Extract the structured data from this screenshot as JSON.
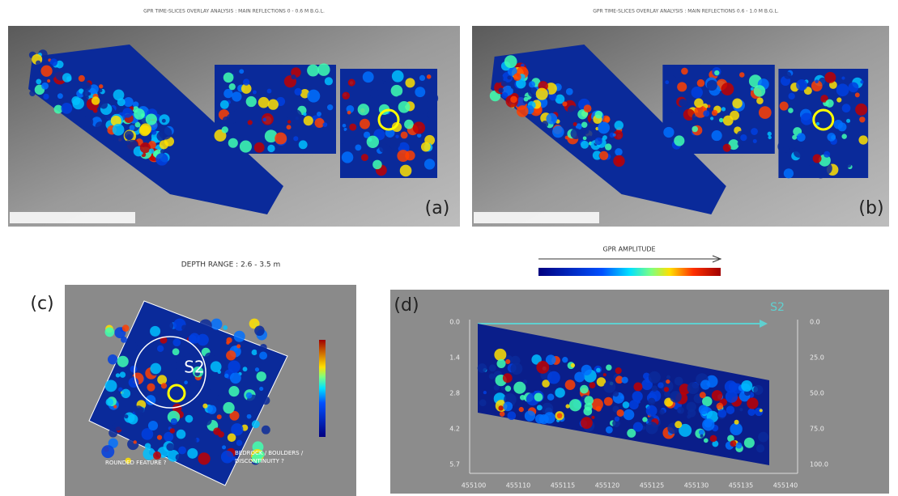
{
  "panels": {
    "a": {
      "title": "GPR TIME-SLICES OVERLAY ANALYSIS : MAIN REFLECTIONS 0 - 0.6 M B.G.L.",
      "label": "(a)"
    },
    "b": {
      "title": "GPR TIME-SLICES OVERLAY ANALYSIS : MAIN REFLECTIONS 0.6 - 1.0 M B.G.L.",
      "label": "(b)"
    },
    "c": {
      "title": "DEPTH RANGE : 2.6 - 3.5 m",
      "label": "(c)",
      "anomaly": "S2",
      "notes": [
        "ROUNDED FEATURE ?",
        "BEDROCK / BOULDERS /",
        "DISCONTINUITY ?"
      ]
    },
    "d": {
      "label": "(d)",
      "anomaly": "S2",
      "left_ticks": [
        "0.0",
        "1.4",
        "2.8",
        "4.2",
        "5.7"
      ],
      "right_ticks": [
        "0.0",
        "25.0",
        "50.0",
        "75.0",
        "100.0"
      ],
      "bottom_ticks": [
        "455100",
        "455110",
        "455115",
        "455120",
        "455125",
        "455130",
        "455135",
        "455140"
      ]
    }
  },
  "colorbar": {
    "title": "GPR AMPLITUDE"
  }
}
